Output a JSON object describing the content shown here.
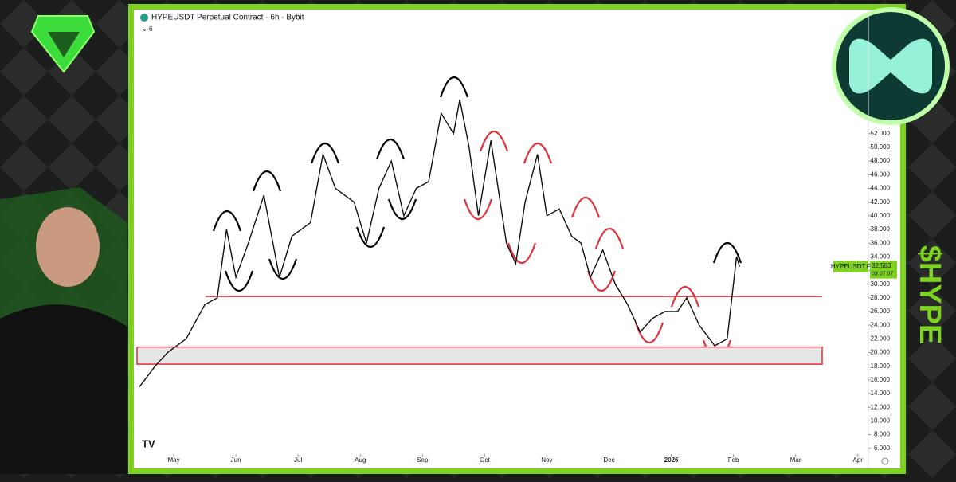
{
  "chart_data": {
    "type": "line",
    "title": "HYPEUSDT Perpetual Contract · 6h · Bybit",
    "indicator_count": "6",
    "side_label": "$HYPE",
    "series": [
      {
        "name": "HYPEUSDT.P",
        "color": "#111111",
        "x": [
          4.45,
          4.7,
          4.9,
          5.2,
          5.5,
          5.7,
          5.85,
          6.0,
          6.2,
          6.45,
          6.7,
          6.9,
          7.2,
          7.4,
          7.6,
          7.9,
          8.1,
          8.3,
          8.5,
          8.7,
          8.9,
          9.1,
          9.3,
          9.5,
          9.6,
          9.75,
          9.9,
          10.1,
          10.25,
          10.35,
          10.5,
          10.65,
          10.85,
          11.0,
          11.2,
          11.4,
          11.55,
          11.7,
          11.9,
          12.1,
          12.3,
          12.5,
          12.7,
          12.9,
          13.1,
          13.25,
          13.45,
          13.7,
          13.9,
          14.05,
          14.1
        ],
        "values": [
          15,
          18,
          20,
          22,
          27,
          28,
          38,
          31,
          36,
          43,
          31,
          37,
          39,
          49,
          44,
          42,
          36,
          44,
          48,
          40,
          44,
          45,
          55,
          52,
          57,
          50,
          40,
          51,
          42,
          36,
          33,
          42,
          49,
          40,
          41,
          37,
          36,
          31,
          35,
          30,
          27,
          23,
          25,
          26,
          26,
          28,
          24,
          21,
          22,
          34,
          32.563
        ]
      }
    ],
    "current_label": {
      "symbol": "HYPEUSDT.P",
      "price": "32.563",
      "countdown": "03:07:07"
    },
    "resistance_level": 28.2,
    "support_zone": [
      18.3,
      20.8
    ],
    "xlim": [
      4.41,
      16.17
    ],
    "xticks": [
      {
        "value": 5,
        "label": "May"
      },
      {
        "value": 6,
        "label": "Jun"
      },
      {
        "value": 7,
        "label": "Jul"
      },
      {
        "value": 8,
        "label": "Aug"
      },
      {
        "value": 9,
        "label": "Sep"
      },
      {
        "value": 10,
        "label": "Oct"
      },
      {
        "value": 11,
        "label": "Nov"
      },
      {
        "value": 12,
        "label": "Dec"
      },
      {
        "value": 13,
        "label": "2026"
      },
      {
        "value": 14,
        "label": "Feb"
      },
      {
        "value": 15,
        "label": "Mar"
      },
      {
        "value": 16,
        "label": "Apr"
      }
    ],
    "ylim": [
      3.4,
      69.8
    ],
    "yticks": [
      {
        "value": 6,
        "label": "6.000"
      },
      {
        "value": 8,
        "label": "8.000"
      },
      {
        "value": 10,
        "label": "10.000"
      },
      {
        "value": 12,
        "label": "12.000"
      },
      {
        "value": 14,
        "label": "14.000"
      },
      {
        "value": 16,
        "label": "16.000"
      },
      {
        "value": 18,
        "label": "18.000"
      },
      {
        "value": 20,
        "label": "20.000"
      },
      {
        "value": 22,
        "label": "22.000"
      },
      {
        "value": 24,
        "label": "24.000"
      },
      {
        "value": 26,
        "label": "26.000"
      },
      {
        "value": 28,
        "label": "28.000"
      },
      {
        "value": 30,
        "label": "30.000"
      },
      {
        "value": 32,
        "label": "32.000"
      },
      {
        "value": 34,
        "label": "34.000"
      },
      {
        "value": 36,
        "label": "36.000"
      },
      {
        "value": 38,
        "label": "38.000"
      },
      {
        "value": 40,
        "label": "40.000"
      },
      {
        "value": 42,
        "label": "42.000"
      },
      {
        "value": 44,
        "label": "44.000"
      },
      {
        "value": 46,
        "label": "46.000"
      },
      {
        "value": 48,
        "label": "48.000"
      },
      {
        "value": 50,
        "label": "50.000"
      },
      {
        "value": 52,
        "label": "52.000"
      }
    ],
    "grid": false
  }
}
